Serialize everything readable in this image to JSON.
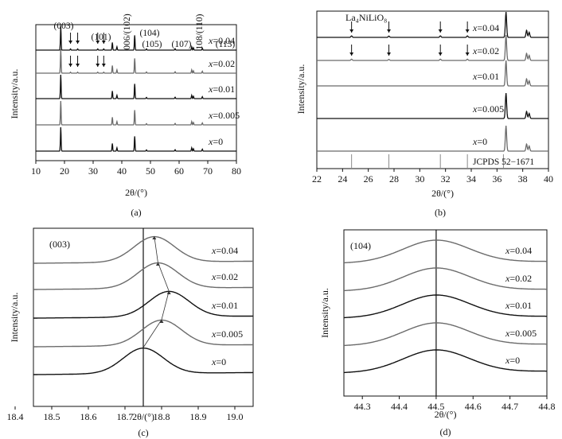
{
  "figure": {
    "colors": {
      "dark": "#111111",
      "gray": "#6b6b6b",
      "light_gray": "#9a9a9a"
    }
  },
  "chart_data": [
    {
      "panel_label": "(a)",
      "type": "line",
      "xlabel": "2θ/(°)",
      "ylabel": "Intensity/a.u.",
      "xlim": [
        10,
        80
      ],
      "xticks": [
        "10",
        "20",
        "30",
        "40",
        "50",
        "60",
        "70",
        "80"
      ],
      "series": [
        {
          "name": "x=0",
          "color": "#111111",
          "peaks": [
            [
              18.7,
              1.0
            ],
            [
              36.7,
              0.32
            ],
            [
              38.3,
              0.14
            ],
            [
              44.5,
              0.62
            ],
            [
              48.6,
              0.05
            ],
            [
              58.6,
              0.06
            ],
            [
              64.4,
              0.14
            ],
            [
              65.0,
              0.1
            ],
            [
              68.1,
              0.08
            ]
          ]
        },
        {
          "name": "x=0.005",
          "color": "#6b6b6b",
          "peaks": [
            [
              18.7,
              1.0
            ],
            [
              36.7,
              0.32
            ],
            [
              38.3,
              0.14
            ],
            [
              44.5,
              0.62
            ],
            [
              48.6,
              0.05
            ],
            [
              58.6,
              0.06
            ],
            [
              64.4,
              0.14
            ],
            [
              65.0,
              0.1
            ],
            [
              68.1,
              0.08
            ]
          ]
        },
        {
          "name": "x=0.01",
          "color": "#111111",
          "peaks": [
            [
              18.7,
              1.0
            ],
            [
              36.7,
              0.32
            ],
            [
              38.3,
              0.14
            ],
            [
              44.5,
              0.62
            ],
            [
              48.6,
              0.05
            ],
            [
              58.6,
              0.06
            ],
            [
              64.4,
              0.14
            ],
            [
              65.0,
              0.1
            ],
            [
              68.1,
              0.08
            ]
          ]
        },
        {
          "name": "x=0.02",
          "color": "#6b6b6b",
          "peaks": [
            [
              18.7,
              1.0
            ],
            [
              22.1,
              0.04
            ],
            [
              24.6,
              0.04
            ],
            [
              31.6,
              0.04
            ],
            [
              33.7,
              0.04
            ],
            [
              36.7,
              0.32
            ],
            [
              38.3,
              0.14
            ],
            [
              44.5,
              0.62
            ],
            [
              48.6,
              0.05
            ],
            [
              58.6,
              0.06
            ],
            [
              64.4,
              0.14
            ],
            [
              65.0,
              0.1
            ],
            [
              68.1,
              0.08
            ]
          ]
        },
        {
          "name": "x=0.04",
          "color": "#111111",
          "peaks": [
            [
              18.7,
              1.0
            ],
            [
              22.1,
              0.05
            ],
            [
              24.6,
              0.05
            ],
            [
              31.6,
              0.05
            ],
            [
              33.7,
              0.05
            ],
            [
              36.7,
              0.32
            ],
            [
              38.3,
              0.14
            ],
            [
              44.5,
              0.62
            ],
            [
              48.6,
              0.05
            ],
            [
              58.6,
              0.06
            ],
            [
              64.4,
              0.14
            ],
            [
              65.0,
              0.1
            ],
            [
              68.1,
              0.08
            ]
          ]
        }
      ],
      "arrow_positions": [
        22.1,
        24.6,
        31.6,
        33.7
      ],
      "reflections": [
        "(003)",
        "(101)",
        "006/(102)",
        "(104)",
        "(105)",
        "(107)",
        "108/(110)",
        "(113)"
      ]
    },
    {
      "panel_label": "(b)",
      "type": "line",
      "xlabel": "2θ/(°)",
      "ylabel": "Intensity/a.u.",
      "xlim": [
        22,
        40
      ],
      "xticks": [
        "22",
        "24",
        "26",
        "28",
        "30",
        "32",
        "34",
        "36",
        "38",
        "40"
      ],
      "impurity_label": "La₄NiLiO₈",
      "reference_label": "JCPDS 52−1671",
      "reference_lines": [
        24.7,
        27.6,
        31.6,
        33.7,
        36.5
      ],
      "arrow_positions": [
        24.7,
        27.6,
        31.6,
        33.7
      ],
      "series": [
        {
          "name": "x=0",
          "color": "#6b6b6b",
          "peaks": [
            [
              36.7,
              1.0
            ],
            [
              38.3,
              0.28
            ],
            [
              38.5,
              0.2
            ]
          ]
        },
        {
          "name": "x=0.005",
          "color": "#111111",
          "peaks": [
            [
              36.7,
              1.0
            ],
            [
              38.3,
              0.28
            ],
            [
              38.5,
              0.2
            ]
          ]
        },
        {
          "name": "x=0.01",
          "color": "#6b6b6b",
          "peaks": [
            [
              36.7,
              1.0
            ],
            [
              38.3,
              0.28
            ],
            [
              38.5,
              0.2
            ]
          ]
        },
        {
          "name": "x=0.02",
          "color": "#6b6b6b",
          "peaks": [
            [
              24.7,
              0.05
            ],
            [
              27.6,
              0.04
            ],
            [
              31.6,
              0.05
            ],
            [
              33.7,
              0.05
            ],
            [
              36.7,
              1.0
            ],
            [
              38.3,
              0.28
            ],
            [
              38.5,
              0.2
            ]
          ]
        },
        {
          "name": "x=0.04",
          "color": "#111111",
          "peaks": [
            [
              24.7,
              0.06
            ],
            [
              27.6,
              0.05
            ],
            [
              31.6,
              0.06
            ],
            [
              33.7,
              0.06
            ],
            [
              36.7,
              1.0
            ],
            [
              38.3,
              0.28
            ],
            [
              38.5,
              0.2
            ]
          ]
        }
      ]
    },
    {
      "panel_label": "(c)",
      "type": "line",
      "reflection": "(003)",
      "xlabel": "2θ/(°)",
      "ylabel": "Intensity/a.u.",
      "xlim": [
        18.45,
        19.05
      ],
      "xticks": [
        "18.4",
        "18.5",
        "18.6",
        "18.7",
        "18.8",
        "18.9",
        "19.0"
      ],
      "xtick_values": [
        18.4,
        18.5,
        18.6,
        18.7,
        18.8,
        18.9,
        19.0
      ],
      "reference_line_x": 18.75,
      "series": [
        {
          "name": "x=0",
          "color": "#111111",
          "peak_x": 18.75
        },
        {
          "name": "x=0.005",
          "color": "#6b6b6b",
          "peak_x": 18.8
        },
        {
          "name": "x=0.01",
          "color": "#111111",
          "peak_x": 18.82
        },
        {
          "name": "x=0.02",
          "color": "#6b6b6b",
          "peak_x": 18.79
        },
        {
          "name": "x=0.04",
          "color": "#6b6b6b",
          "peak_x": 18.78
        }
      ]
    },
    {
      "panel_label": "(d)",
      "type": "line",
      "reflection": "(104)",
      "xlabel": "2θ/(°)",
      "ylabel": "Intensity/a.u.",
      "xlim": [
        44.25,
        44.8
      ],
      "xticks": [
        "44.3",
        "44.4",
        "44.5",
        "44.6",
        "44.7",
        "44.8"
      ],
      "xtick_values": [
        44.3,
        44.4,
        44.5,
        44.6,
        44.7,
        44.8
      ],
      "reference_line_x": 44.5,
      "series": [
        {
          "name": "x=0",
          "color": "#111111",
          "peak_x": 44.5
        },
        {
          "name": "x=0.005",
          "color": "#6b6b6b",
          "peak_x": 44.5
        },
        {
          "name": "x=0.01",
          "color": "#111111",
          "peak_x": 44.5
        },
        {
          "name": "x=0.02",
          "color": "#6b6b6b",
          "peak_x": 44.5
        },
        {
          "name": "x=0.04",
          "color": "#6b6b6b",
          "peak_x": 44.5
        }
      ]
    }
  ]
}
